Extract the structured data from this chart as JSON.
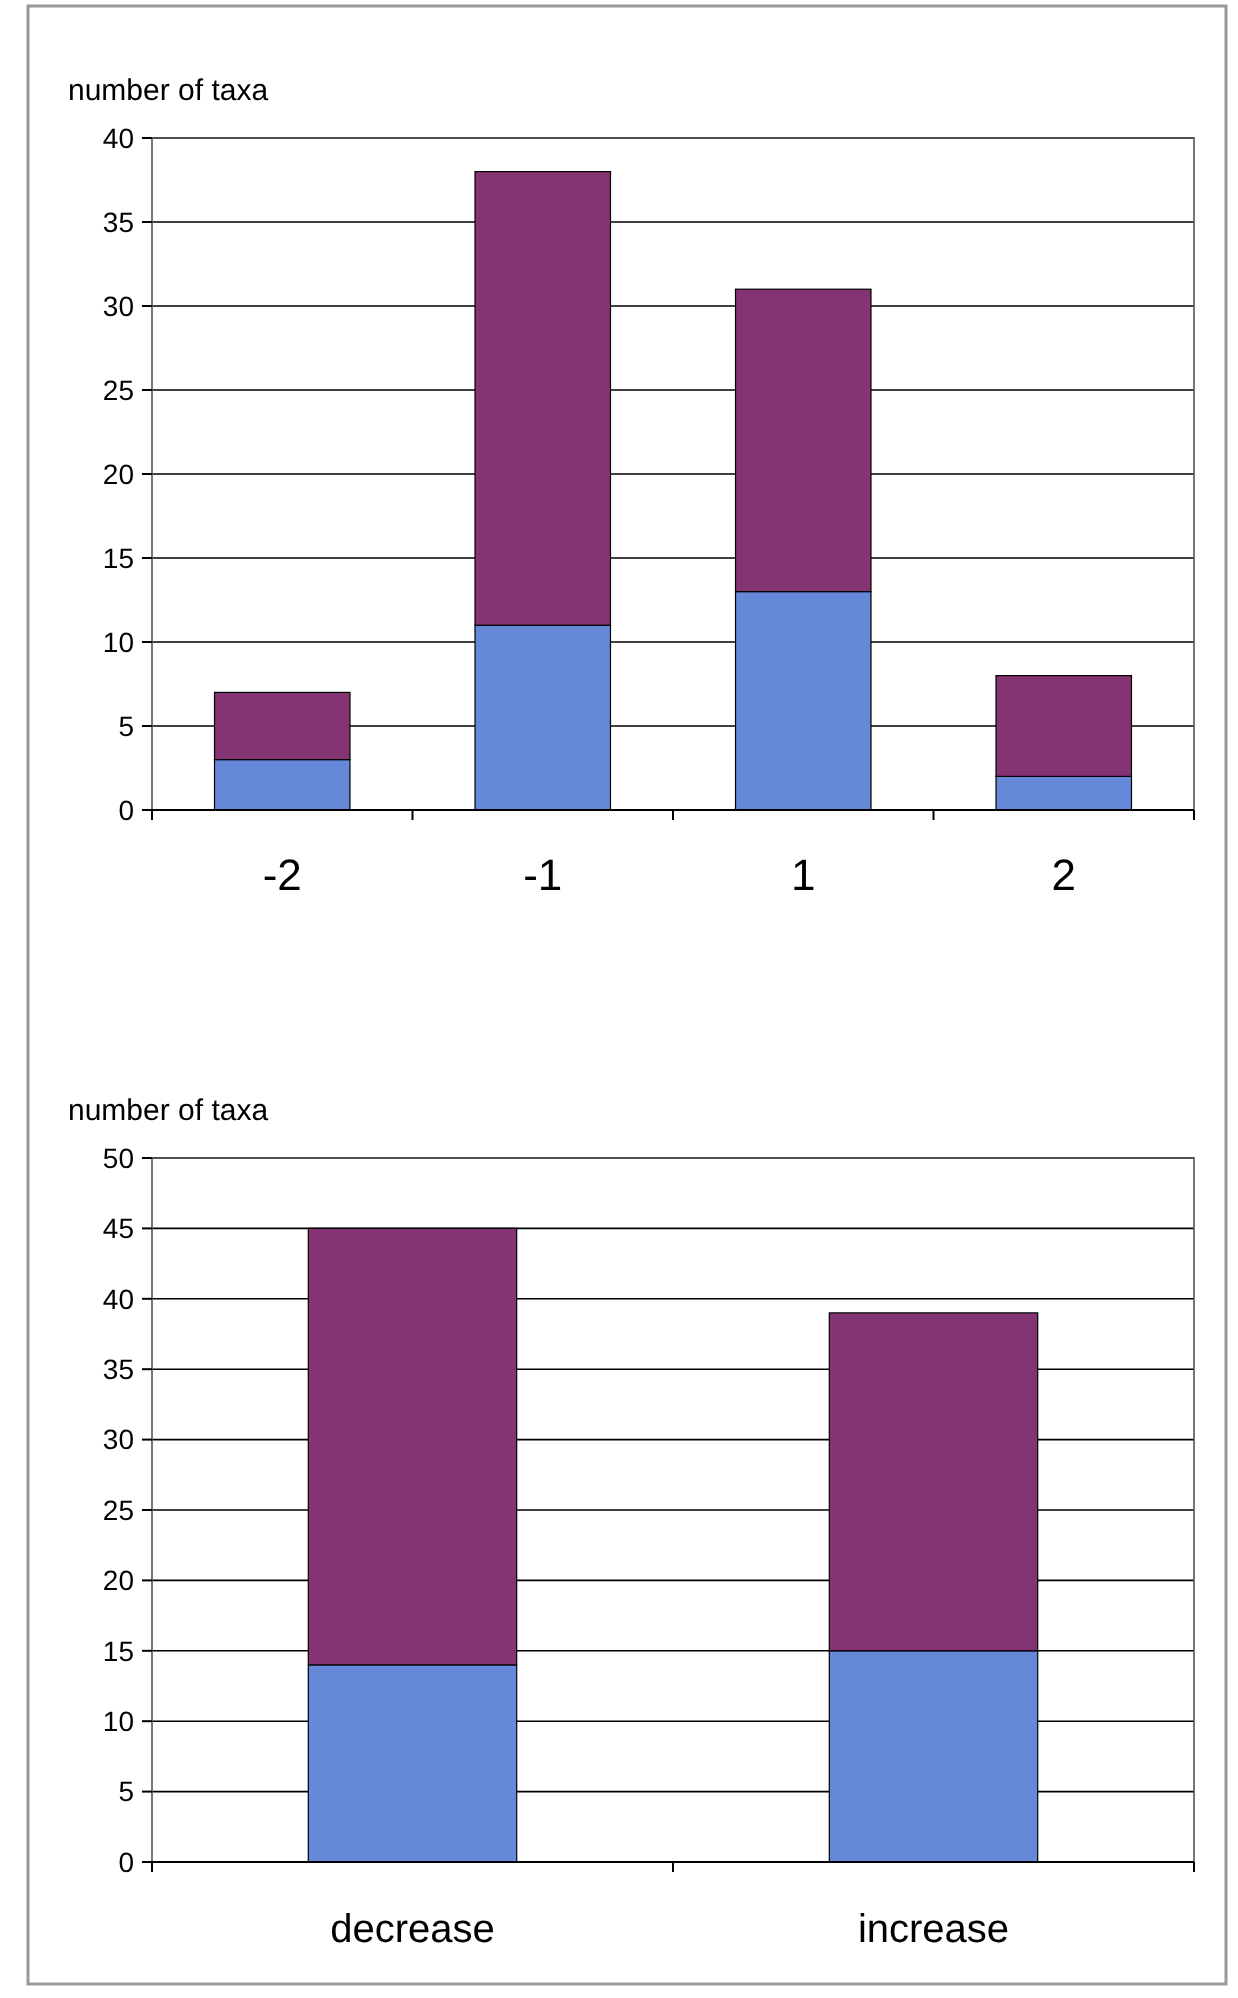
{
  "chart_data": [
    {
      "type": "bar",
      "ylabel": "number of taxa",
      "categories": [
        "-2",
        "-1",
        "1",
        "2"
      ],
      "stacked": true,
      "grid": "y",
      "series": [
        {
          "color": "#6688d8",
          "values": [
            3,
            11,
            13,
            2
          ]
        },
        {
          "color": "#853473",
          "values": [
            4,
            27,
            18,
            6
          ]
        }
      ],
      "ylim": [
        0,
        40
      ],
      "yticks": [
        0,
        5,
        10,
        15,
        20,
        25,
        30,
        35,
        40
      ]
    },
    {
      "type": "bar",
      "ylabel": "number of taxa",
      "categories": [
        "decrease",
        "increase"
      ],
      "stacked": true,
      "grid": "y",
      "series": [
        {
          "color": "#6688d8",
          "values": [
            14,
            15
          ]
        },
        {
          "color": "#853473",
          "values": [
            31,
            24
          ]
        }
      ],
      "ylim": [
        0,
        50
      ],
      "yticks": [
        0,
        5,
        10,
        15,
        20,
        25,
        30,
        35,
        40,
        45,
        50
      ]
    }
  ]
}
